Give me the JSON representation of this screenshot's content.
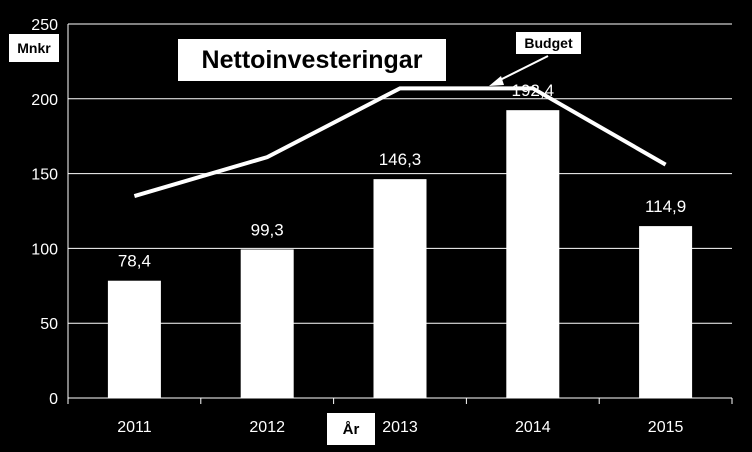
{
  "chart_data": {
    "type": "bar",
    "title": "Nettoinvesteringar",
    "ylabel": "Mnkr",
    "xlabel": "År",
    "categories": [
      "2011",
      "2012",
      "2013",
      "2014",
      "2015"
    ],
    "series": [
      {
        "values": [
          78.4,
          99.3,
          146.3,
          192.4,
          114.9
        ],
        "data_labels": [
          "78,4",
          "99,3",
          "146,3",
          "192,4",
          "114,9"
        ],
        "color": "#ffffff"
      },
      {
        "name": "Budget",
        "type": "line",
        "values": [
          135,
          161,
          207,
          207,
          156
        ],
        "color": "#ffffff"
      }
    ],
    "ylim": [
      0,
      250
    ],
    "yticks": [
      0,
      50,
      100,
      150,
      200,
      250
    ],
    "grid": true,
    "background": "#000000",
    "text_color": "#ffffff"
  }
}
